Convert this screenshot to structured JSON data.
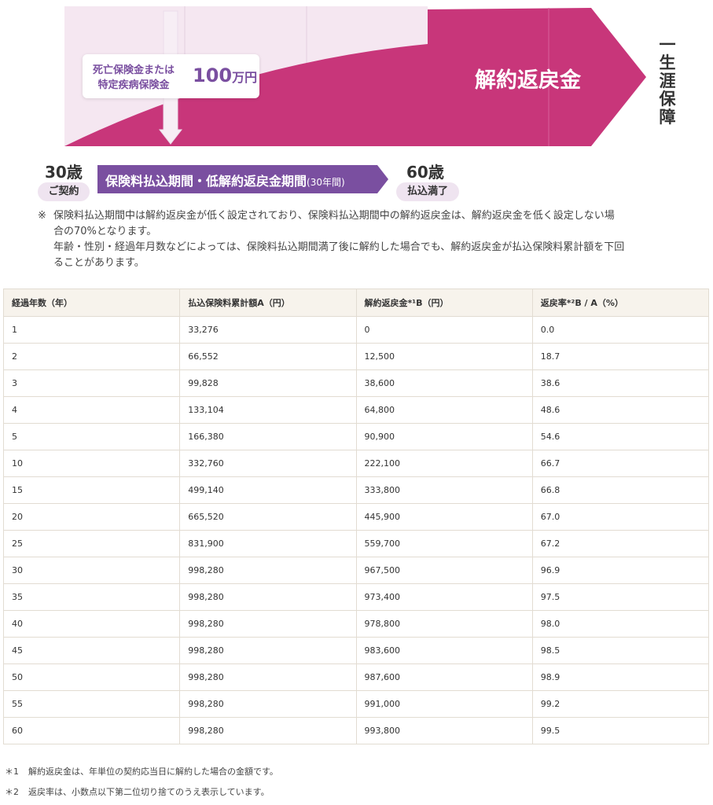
{
  "diagram": {
    "callout_line1": "死亡保険金または",
    "callout_line2": "特定疾病保険金",
    "callout_amount": "100",
    "callout_unit": "万円",
    "surrender_label": "解約返戻金",
    "lifetime_label": "一生涯保障",
    "start_age": "30歳",
    "start_tag": "ご契約",
    "end_age": "60歳",
    "end_tag": "払込満了",
    "period_label": "保険料払込期間・低解約返戻金期間",
    "period_years": "(30年間)",
    "colors": {
      "magenta": "#c8367a",
      "light_pink": "#f5e7f1",
      "purple": "#7a4fa0",
      "pill": "#efe4f0"
    }
  },
  "note": {
    "mark": "※",
    "line1": "保険料払込期間中は解約返戻金が低く設定されており、保険料払込期間中の解約返戻金は、解約返戻金を低く設定しない場",
    "line2": "合の70%となります。",
    "line3": "年齢・性別・経過年月数などによっては、保険料払込期間満了後に解約した場合でも、解約返戻金が払込保険料累計額を下回",
    "line4": "ることがあります。"
  },
  "table": {
    "headers": [
      "経過年数（年）",
      "払込保険料累計額A（円）",
      "解約返戻金*¹B（円）",
      "返戻率*²B / A（%）"
    ],
    "rows": [
      [
        "1",
        "33,276",
        "0",
        "0.0"
      ],
      [
        "2",
        "66,552",
        "12,500",
        "18.7"
      ],
      [
        "3",
        "99,828",
        "38,600",
        "38.6"
      ],
      [
        "4",
        "133,104",
        "64,800",
        "48.6"
      ],
      [
        "5",
        "166,380",
        "90,900",
        "54.6"
      ],
      [
        "10",
        "332,760",
        "222,100",
        "66.7"
      ],
      [
        "15",
        "499,140",
        "333,800",
        "66.8"
      ],
      [
        "20",
        "665,520",
        "445,900",
        "67.0"
      ],
      [
        "25",
        "831,900",
        "559,700",
        "67.2"
      ],
      [
        "30",
        "998,280",
        "967,500",
        "96.9"
      ],
      [
        "35",
        "998,280",
        "973,400",
        "97.5"
      ],
      [
        "40",
        "998,280",
        "978,800",
        "98.0"
      ],
      [
        "45",
        "998,280",
        "983,600",
        "98.5"
      ],
      [
        "50",
        "998,280",
        "987,600",
        "98.9"
      ],
      [
        "55",
        "998,280",
        "991,000",
        "99.2"
      ],
      [
        "60",
        "998,280",
        "993,800",
        "99.5"
      ]
    ]
  },
  "footnotes": [
    {
      "mark": "＊1",
      "text": "解約返戻金は、年単位の契約応当日に解約した場合の金額です。"
    },
    {
      "mark": "＊2",
      "text": "返戻率は、小数点以下第二位切り捨てのうえ表示しています。"
    }
  ]
}
